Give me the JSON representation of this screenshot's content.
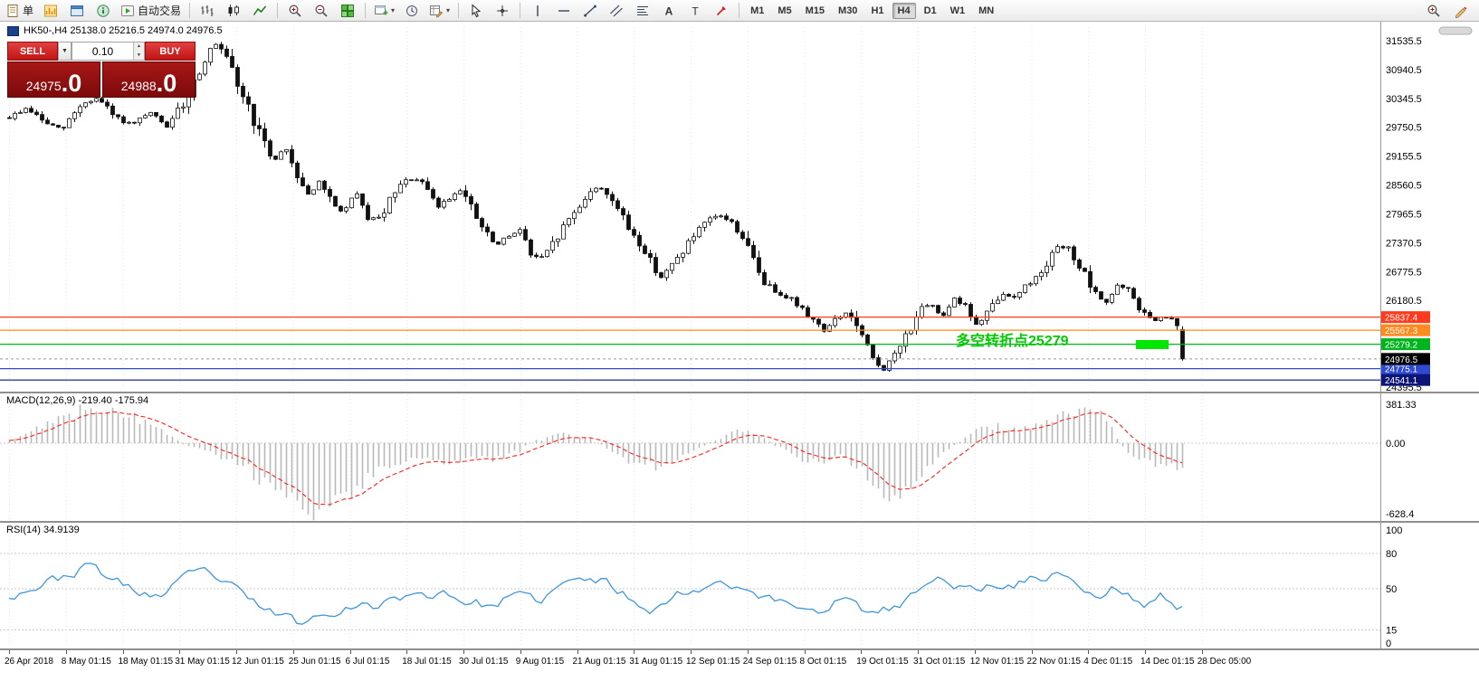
{
  "toolbar": {
    "groups": [
      {
        "sep": false,
        "items": [
          {
            "name": "new-order-button",
            "icon": "doc-icon",
            "label": "单"
          }
        ]
      },
      {
        "sep": false,
        "items": [
          {
            "name": "market-watch-button",
            "icon": "market-watch-icon"
          },
          {
            "name": "data-window-button",
            "icon": "data-window-icon"
          },
          {
            "name": "navigator-button",
            "icon": "navigator-icon"
          }
        ]
      },
      {
        "sep": false,
        "items": [
          {
            "name": "autotrade-button",
            "icon": "autotrade-icon",
            "label": "自动交易"
          }
        ]
      },
      {
        "sep": true,
        "items": [
          {
            "name": "bar-chart-button",
            "icon": "bar-chart-icon"
          },
          {
            "name": "candle-chart-button",
            "icon": "candle-chart-icon"
          },
          {
            "name": "line-chart-button",
            "icon": "line-chart-icon"
          }
        ]
      },
      {
        "sep": true,
        "items": [
          {
            "name": "zoom-in-button",
            "icon": "zoom-in-icon"
          },
          {
            "name": "zoom-out-button",
            "icon": "zoom-out-icon"
          },
          {
            "name": "tile-windows-button",
            "icon": "tile-windows-icon"
          }
        ]
      },
      {
        "sep": true,
        "items": [
          {
            "name": "new-chart-button",
            "icon": "new-chart-icon",
            "caret": true
          },
          {
            "name": "cycle-chart-button",
            "icon": "cycle-icon"
          },
          {
            "name": "templates-button",
            "icon": "templates-icon",
            "caret": true
          }
        ]
      },
      {
        "sep": true,
        "items": [
          {
            "name": "cursor-button",
            "icon": "cursor-icon"
          },
          {
            "name": "crosshair-button",
            "icon": "crosshair-icon"
          }
        ]
      },
      {
        "sep": true,
        "items": [
          {
            "name": "vertical-line-button",
            "icon": "vertical-line-icon"
          },
          {
            "name": "horizontal-line-button",
            "icon": "horizontal-line-icon"
          },
          {
            "name": "trendline-button",
            "icon": "trendline-icon"
          },
          {
            "name": "channel-button",
            "icon": "channel-icon"
          },
          {
            "name": "fibonacci-button",
            "icon": "fibonacci-icon"
          },
          {
            "name": "text-button",
            "icon": "text-icon"
          },
          {
            "name": "text-label-button",
            "icon": "text-label-icon"
          },
          {
            "name": "arrows-button",
            "icon": "arrows-icon"
          }
        ]
      }
    ],
    "timeframes": {
      "items": [
        "M1",
        "M5",
        "M15",
        "M30",
        "H1",
        "H4",
        "D1",
        "W1",
        "MN"
      ],
      "active": "H4"
    },
    "right_items": [
      {
        "name": "zoom-plus-button",
        "icon": "zoom-plus-icon"
      },
      {
        "name": "pencil-button",
        "icon": "pencil-icon"
      }
    ]
  },
  "trade_panel": {
    "sell_label": "SELL",
    "buy_label": "BUY",
    "volume": "0.10",
    "sell_price": {
      "main": "24975",
      "big": ".0"
    },
    "buy_price": {
      "main": "24988",
      "big": ".0"
    }
  },
  "chart_data": [
    {
      "type": "candlestick",
      "header": "HK50-,H4 25138.0 25216.5 24974.0 24976.5",
      "symbol": "HK50-",
      "timeframe": "H4",
      "ohlc": {
        "open": 25138.0,
        "high": 25216.5,
        "low": 24974.0,
        "close": 24976.5
      },
      "ylim": [
        24395.5,
        31535.5
      ],
      "y_ticks": [
        31535.5,
        30940.5,
        30345.5,
        29750.5,
        29155.5,
        28560.5,
        27965.5,
        27370.5,
        26775.5,
        26180.5,
        25585.5,
        24990.5,
        24395.5
      ],
      "x_labels": [
        "26 Apr 2018",
        "8 May 01:15",
        "18 May 01:15",
        "31 May 01:15",
        "12 Jun 01:15",
        "25 Jun 01:15",
        "6 Jul 01:15",
        "18 Jul 01:15",
        "30 Jul 01:15",
        "9 Aug 01:15",
        "21 Aug 01:15",
        "31 Aug 01:15",
        "12 Sep 01:15",
        "24 Sep 01:15",
        "8 Oct 01:15",
        "19 Oct 01:15",
        "31 Oct 01:15",
        "12 Nov 01:15",
        "22 Nov 01:15",
        "4 Dec 01:15",
        "14 Dec 01:15",
        "28 Dec 05:00"
      ],
      "levels": [
        {
          "price": 25837.4,
          "label": "25837.4",
          "color": "#ff3b1e"
        },
        {
          "price": 25567.3,
          "label": "25567.3",
          "color": "#ff8a1e"
        },
        {
          "price": 25279.2,
          "label": "25279.2",
          "color": "#00b41e"
        },
        {
          "price": 24775.1,
          "label": "24775.1",
          "color": "#2f49d0"
        },
        {
          "price": 24541.1,
          "label": "24541.1",
          "color": "#0d1678"
        }
      ],
      "current_price": {
        "value": 24976.5,
        "label": "24976.5",
        "badge_color": "#000000",
        "line_color": "#999999"
      },
      "annotation": {
        "text": "多空转折点25279",
        "color": "#00cc00"
      },
      "highlight_box": {
        "color": "#00e800"
      },
      "candle_count": 217,
      "price_path_anchors": [
        [
          0,
          29950
        ],
        [
          0.015,
          30150
        ],
        [
          0.03,
          29850
        ],
        [
          0.045,
          29700
        ],
        [
          0.06,
          30200
        ],
        [
          0.075,
          30350
        ],
        [
          0.09,
          29950
        ],
        [
          0.105,
          29800
        ],
        [
          0.12,
          30050
        ],
        [
          0.135,
          29750
        ],
        [
          0.15,
          30300
        ],
        [
          0.165,
          31100
        ],
        [
          0.175,
          31480
        ],
        [
          0.185,
          31150
        ],
        [
          0.195,
          30600
        ],
        [
          0.205,
          30100
        ],
        [
          0.215,
          29500
        ],
        [
          0.225,
          29050
        ],
        [
          0.235,
          29350
        ],
        [
          0.245,
          28800
        ],
        [
          0.255,
          28350
        ],
        [
          0.265,
          28650
        ],
        [
          0.275,
          28150
        ],
        [
          0.285,
          28000
        ],
        [
          0.295,
          28400
        ],
        [
          0.305,
          27900
        ],
        [
          0.315,
          27850
        ],
        [
          0.325,
          28250
        ],
        [
          0.335,
          28600
        ],
        [
          0.345,
          28700
        ],
        [
          0.355,
          28500
        ],
        [
          0.365,
          28100
        ],
        [
          0.375,
          28300
        ],
        [
          0.385,
          28500
        ],
        [
          0.395,
          28000
        ],
        [
          0.405,
          27600
        ],
        [
          0.415,
          27300
        ],
        [
          0.425,
          27500
        ],
        [
          0.435,
          27650
        ],
        [
          0.445,
          27100
        ],
        [
          0.455,
          27050
        ],
        [
          0.465,
          27400
        ],
        [
          0.475,
          27800
        ],
        [
          0.485,
          28100
        ],
        [
          0.495,
          28450
        ],
        [
          0.505,
          28500
        ],
        [
          0.515,
          28250
        ],
        [
          0.525,
          27750
        ],
        [
          0.535,
          27450
        ],
        [
          0.545,
          27050
        ],
        [
          0.555,
          26650
        ],
        [
          0.565,
          26900
        ],
        [
          0.575,
          27250
        ],
        [
          0.585,
          27550
        ],
        [
          0.595,
          27800
        ],
        [
          0.605,
          27950
        ],
        [
          0.615,
          27800
        ],
        [
          0.625,
          27500
        ],
        [
          0.635,
          26950
        ],
        [
          0.645,
          26500
        ],
        [
          0.655,
          26350
        ],
        [
          0.665,
          26250
        ],
        [
          0.675,
          26000
        ],
        [
          0.685,
          25800
        ],
        [
          0.695,
          25550
        ],
        [
          0.705,
          25800
        ],
        [
          0.715,
          25950
        ],
        [
          0.725,
          25500
        ],
        [
          0.735,
          25000
        ],
        [
          0.745,
          24750
        ],
        [
          0.755,
          25050
        ],
        [
          0.765,
          25500
        ],
        [
          0.775,
          25950
        ],
        [
          0.785,
          26100
        ],
        [
          0.795,
          25850
        ],
        [
          0.805,
          26250
        ],
        [
          0.815,
          26050
        ],
        [
          0.825,
          25650
        ],
        [
          0.835,
          25950
        ],
        [
          0.845,
          26300
        ],
        [
          0.855,
          26250
        ],
        [
          0.865,
          26450
        ],
        [
          0.875,
          26650
        ],
        [
          0.885,
          27000
        ],
        [
          0.895,
          27300
        ],
        [
          0.905,
          27200
        ],
        [
          0.915,
          26750
        ],
        [
          0.925,
          26300
        ],
        [
          0.935,
          26150
        ],
        [
          0.945,
          26500
        ],
        [
          0.955,
          26350
        ],
        [
          0.965,
          25950
        ],
        [
          0.975,
          25750
        ],
        [
          0.985,
          25850
        ],
        [
          0.995,
          25650
        ],
        [
          1,
          24976.5
        ]
      ]
    },
    {
      "type": "bar",
      "name": "MACD",
      "header": "MACD(12,26,9) -219.40 -175.94",
      "values": [
        -219.4,
        -175.94
      ],
      "y_ticks": [
        381.33,
        0,
        -628.4
      ],
      "y_tick_labels": [
        "381.33",
        "0.00",
        "-628.4"
      ],
      "bar_color": "#b8b8b8",
      "signal_color": "#ff1f1f",
      "histogram_anchors": [
        [
          0,
          30
        ],
        [
          0.03,
          180
        ],
        [
          0.06,
          320
        ],
        [
          0.08,
          340
        ],
        [
          0.1,
          280
        ],
        [
          0.13,
          120
        ],
        [
          0.15,
          -20
        ],
        [
          0.17,
          -60
        ],
        [
          0.19,
          -150
        ],
        [
          0.21,
          -280
        ],
        [
          0.23,
          -420
        ],
        [
          0.25,
          -560
        ],
        [
          0.27,
          -620
        ],
        [
          0.29,
          -480
        ],
        [
          0.31,
          -300
        ],
        [
          0.33,
          -170
        ],
        [
          0.35,
          -120
        ],
        [
          0.37,
          -160
        ],
        [
          0.39,
          -120
        ],
        [
          0.41,
          -140
        ],
        [
          0.43,
          -90
        ],
        [
          0.45,
          30
        ],
        [
          0.47,
          90
        ],
        [
          0.49,
          60
        ],
        [
          0.51,
          -40
        ],
        [
          0.53,
          -160
        ],
        [
          0.55,
          -220
        ],
        [
          0.57,
          -140
        ],
        [
          0.59,
          -40
        ],
        [
          0.61,
          80
        ],
        [
          0.63,
          130
        ],
        [
          0.65,
          0
        ],
        [
          0.67,
          -120
        ],
        [
          0.69,
          -180
        ],
        [
          0.71,
          -90
        ],
        [
          0.73,
          -260
        ],
        [
          0.74,
          -430
        ],
        [
          0.76,
          -420
        ],
        [
          0.78,
          -230
        ],
        [
          0.8,
          -60
        ],
        [
          0.82,
          100
        ],
        [
          0.84,
          170
        ],
        [
          0.86,
          130
        ],
        [
          0.88,
          180
        ],
        [
          0.9,
          260
        ],
        [
          0.92,
          340
        ],
        [
          0.93,
          280
        ],
        [
          0.94,
          120
        ],
        [
          0.95,
          -40
        ],
        [
          0.96,
          -130
        ],
        [
          0.97,
          -180
        ],
        [
          0.98,
          -160
        ],
        [
          0.99,
          -200
        ],
        [
          1,
          -219.4
        ]
      ]
    },
    {
      "type": "line",
      "name": "RSI",
      "header": "RSI(14) 34.9139",
      "value": 34.9139,
      "y_ticks": [
        100,
        80,
        50,
        15,
        0
      ],
      "level_lines": [
        80,
        50,
        15
      ],
      "line_color": "#3d96dc",
      "line_anchors": [
        [
          0,
          45
        ],
        [
          0.02,
          52
        ],
        [
          0.04,
          58
        ],
        [
          0.06,
          66
        ],
        [
          0.07,
          70
        ],
        [
          0.09,
          56
        ],
        [
          0.11,
          47
        ],
        [
          0.13,
          44
        ],
        [
          0.15,
          58
        ],
        [
          0.17,
          64
        ],
        [
          0.19,
          50
        ],
        [
          0.21,
          36
        ],
        [
          0.23,
          28
        ],
        [
          0.25,
          20
        ],
        [
          0.27,
          30
        ],
        [
          0.29,
          38
        ],
        [
          0.31,
          34
        ],
        [
          0.33,
          45
        ],
        [
          0.35,
          42
        ],
        [
          0.37,
          48
        ],
        [
          0.39,
          40
        ],
        [
          0.41,
          35
        ],
        [
          0.43,
          44
        ],
        [
          0.45,
          38
        ],
        [
          0.47,
          52
        ],
        [
          0.49,
          58
        ],
        [
          0.51,
          55
        ],
        [
          0.53,
          42
        ],
        [
          0.55,
          34
        ],
        [
          0.57,
          45
        ],
        [
          0.59,
          52
        ],
        [
          0.61,
          58
        ],
        [
          0.63,
          50
        ],
        [
          0.65,
          40
        ],
        [
          0.67,
          36
        ],
        [
          0.69,
          32
        ],
        [
          0.71,
          44
        ],
        [
          0.73,
          30
        ],
        [
          0.74,
          26
        ],
        [
          0.76,
          36
        ],
        [
          0.78,
          52
        ],
        [
          0.8,
          58
        ],
        [
          0.82,
          48
        ],
        [
          0.84,
          54
        ],
        [
          0.86,
          56
        ],
        [
          0.88,
          60
        ],
        [
          0.9,
          64
        ],
        [
          0.91,
          56
        ],
        [
          0.92,
          46
        ],
        [
          0.93,
          42
        ],
        [
          0.94,
          50
        ],
        [
          0.95,
          46
        ],
        [
          0.96,
          40
        ],
        [
          0.97,
          36
        ],
        [
          0.98,
          44
        ],
        [
          0.99,
          40
        ],
        [
          1,
          34.9
        ]
      ]
    }
  ]
}
